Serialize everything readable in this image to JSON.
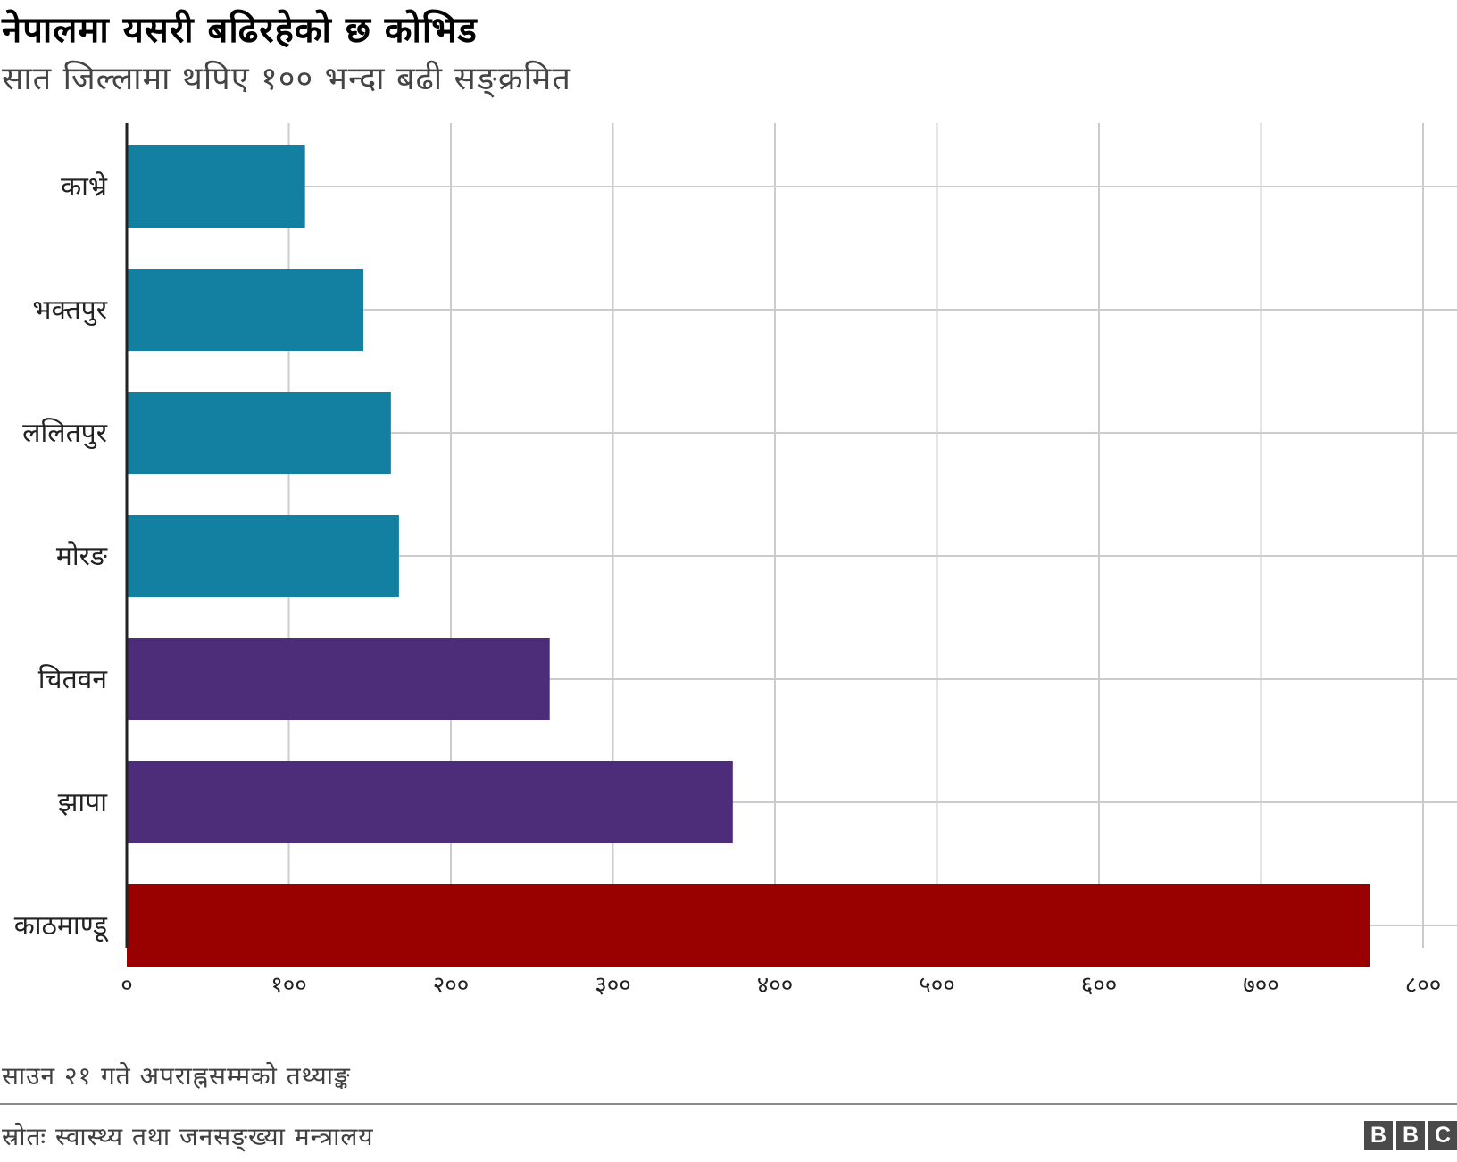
{
  "header": {
    "title": "नेपालमा यसरी बढिरहेको छ कोभिड",
    "subtitle": "सात जिल्लामा थपिए १०० भन्दा बढी सङ्क्रमित"
  },
  "footer": {
    "note": "साउन २१ गते अपराह्नसम्मको तथ्याङ्क",
    "source": "स्रोतः स्वास्थ्य तथा जनसङ्ख्या मन्त्रालय",
    "logo_letters": [
      "B",
      "B",
      "C"
    ]
  },
  "chart_data": {
    "type": "bar",
    "orientation": "horizontal",
    "categories": [
      "काभ्रे",
      "भक्तपुर",
      "ललितपुर",
      "मोरङ",
      "चितवन",
      "झापा",
      "काठमाण्डू"
    ],
    "values": [
      110,
      146,
      163,
      168,
      261,
      374,
      767
    ],
    "bar_colors": [
      "#1380a1",
      "#1380a1",
      "#1380a1",
      "#1380a1",
      "#4d2d7a",
      "#4d2d7a",
      "#990000"
    ],
    "xlim": [
      0,
      800
    ],
    "xticks": [
      0,
      100,
      200,
      300,
      400,
      500,
      600,
      700,
      800
    ],
    "xtick_labels": [
      "०",
      "१००",
      "२००",
      "३००",
      "४००",
      "५००",
      "६००",
      "७००",
      "८००"
    ],
    "grid": true
  }
}
